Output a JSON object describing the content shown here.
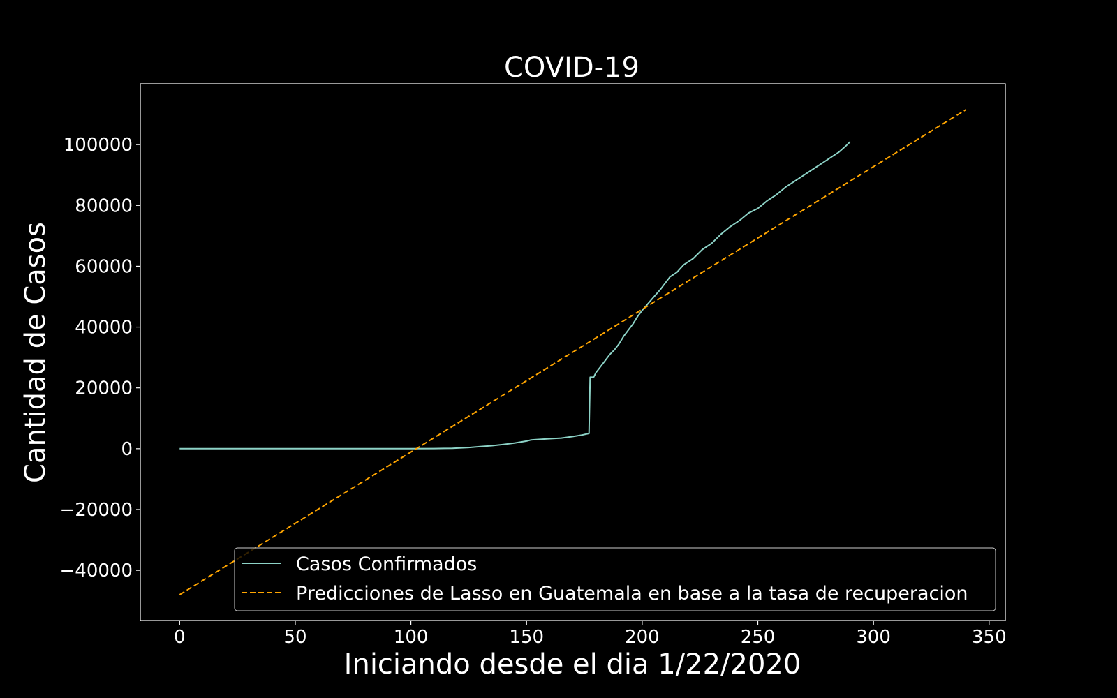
{
  "chart_data": {
    "type": "line",
    "title": "COVID-19",
    "xlabel": "Iniciando desde el dia 1/22/2020",
    "ylabel": "Cantidad de Casos",
    "xlim": [
      -17,
      357
    ],
    "ylim": [
      -56500,
      120000
    ],
    "x_ticks": [
      0,
      50,
      100,
      150,
      200,
      250,
      300,
      350
    ],
    "y_ticks": [
      -40000,
      -20000,
      0,
      20000,
      40000,
      60000,
      80000,
      100000
    ],
    "y_tick_labels": [
      "−40000",
      "−20000",
      "0",
      "20000",
      "40000",
      "60000",
      "80000",
      "100000"
    ],
    "grid": false,
    "legend_position": "lower-right",
    "background": "#000000",
    "foreground": "#ffffff",
    "series": [
      {
        "name": "Casos Confirmados",
        "style": "solid",
        "color": "#8dd3c7",
        "points": [
          [
            0,
            0
          ],
          [
            60,
            0
          ],
          [
            100,
            0
          ],
          [
            110,
            50
          ],
          [
            118,
            150
          ],
          [
            125,
            400
          ],
          [
            130,
            700
          ],
          [
            135,
            1000
          ],
          [
            140,
            1400
          ],
          [
            145,
            1900
          ],
          [
            150,
            2500
          ],
          [
            152,
            2900
          ],
          [
            160,
            3300
          ],
          [
            165,
            3500
          ],
          [
            170,
            4000
          ],
          [
            174,
            4500
          ],
          [
            177,
            5000
          ],
          [
            177.5,
            23500
          ],
          [
            179,
            23500
          ],
          [
            180,
            25000
          ],
          [
            182,
            27000
          ],
          [
            184,
            29000
          ],
          [
            186,
            31000
          ],
          [
            188,
            32500
          ],
          [
            190,
            34500
          ],
          [
            192,
            37000
          ],
          [
            194,
            39000
          ],
          [
            196,
            41000
          ],
          [
            198,
            43500
          ],
          [
            200,
            45500
          ],
          [
            204,
            49000
          ],
          [
            208,
            52500
          ],
          [
            212,
            56500
          ],
          [
            215,
            58000
          ],
          [
            218,
            60500
          ],
          [
            222,
            62500
          ],
          [
            226,
            65500
          ],
          [
            230,
            67500
          ],
          [
            234,
            70500
          ],
          [
            238,
            73000
          ],
          [
            242,
            75000
          ],
          [
            246,
            77500
          ],
          [
            250,
            79000
          ],
          [
            254,
            81500
          ],
          [
            258,
            83500
          ],
          [
            262,
            86000
          ],
          [
            266,
            88000
          ],
          [
            270,
            90000
          ],
          [
            274,
            92000
          ],
          [
            278,
            94000
          ],
          [
            282,
            96000
          ],
          [
            285,
            97500
          ],
          [
            288,
            99500
          ],
          [
            290,
            101000
          ]
        ]
      },
      {
        "name": "Predicciones de Lasso en Guatemala en base a la tasa de recuperacion",
        "style": "dashed",
        "color": "#ffa500",
        "points": [
          [
            0,
            -48000
          ],
          [
            340,
            111500
          ]
        ]
      }
    ]
  }
}
